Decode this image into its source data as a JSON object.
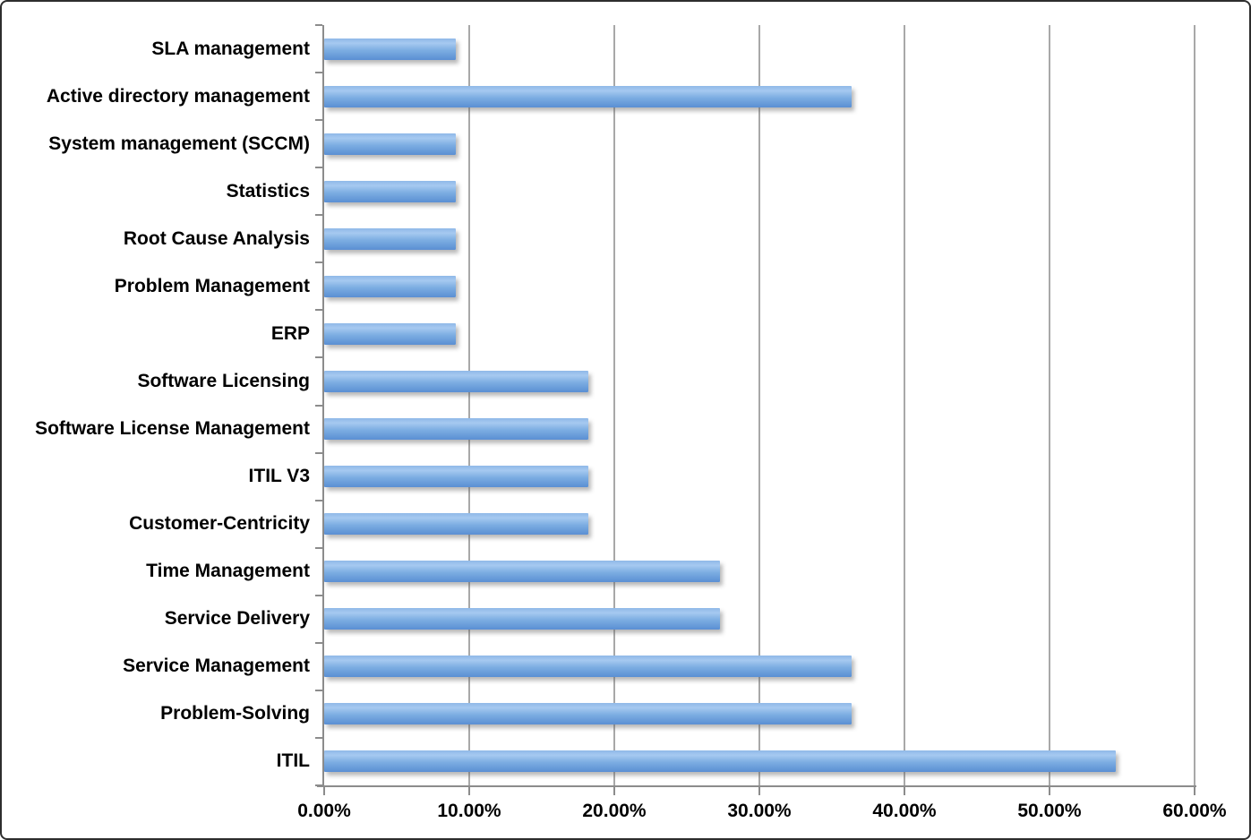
{
  "chart_data": {
    "type": "bar",
    "orientation": "horizontal",
    "title": "",
    "xlabel": "",
    "ylabel": "",
    "xlim": [
      0,
      60
    ],
    "grid": "vertical",
    "legend_position": "none",
    "categories": [
      "SLA management",
      "Active directory management",
      "System management (SCCM)",
      "Statistics",
      "Root Cause Analysis",
      "Problem Management",
      "ERP",
      "Software Licensing",
      "Software License Management",
      "ITIL V3",
      "Customer-Centricity",
      "Time Management",
      "Service Delivery",
      "Service Management",
      "Problem-Solving",
      "ITIL"
    ],
    "values": [
      9.09,
      36.36,
      9.09,
      9.09,
      9.09,
      9.09,
      9.09,
      18.18,
      18.18,
      18.18,
      18.18,
      27.27,
      27.27,
      36.36,
      36.36,
      54.55
    ],
    "x_tick_values": [
      0,
      10,
      20,
      30,
      40,
      50,
      60
    ],
    "x_tick_labels": [
      "0.00%",
      "10.00%",
      "20.00%",
      "30.00%",
      "40.00%",
      "50.00%",
      "60.00%"
    ],
    "bar_color": "#7fafe3",
    "bar_gradient_top": "#8fb9e8",
    "bar_gradient_highlight": "#a6c9f0",
    "bar_gradient_mid": "#7cade2",
    "bar_gradient_bottom": "#5a8fd3",
    "gridline_color": "#a8a8a8",
    "axis_color": "#8c8c8c",
    "label_color": "#000000",
    "background_color": "#ffffff"
  }
}
